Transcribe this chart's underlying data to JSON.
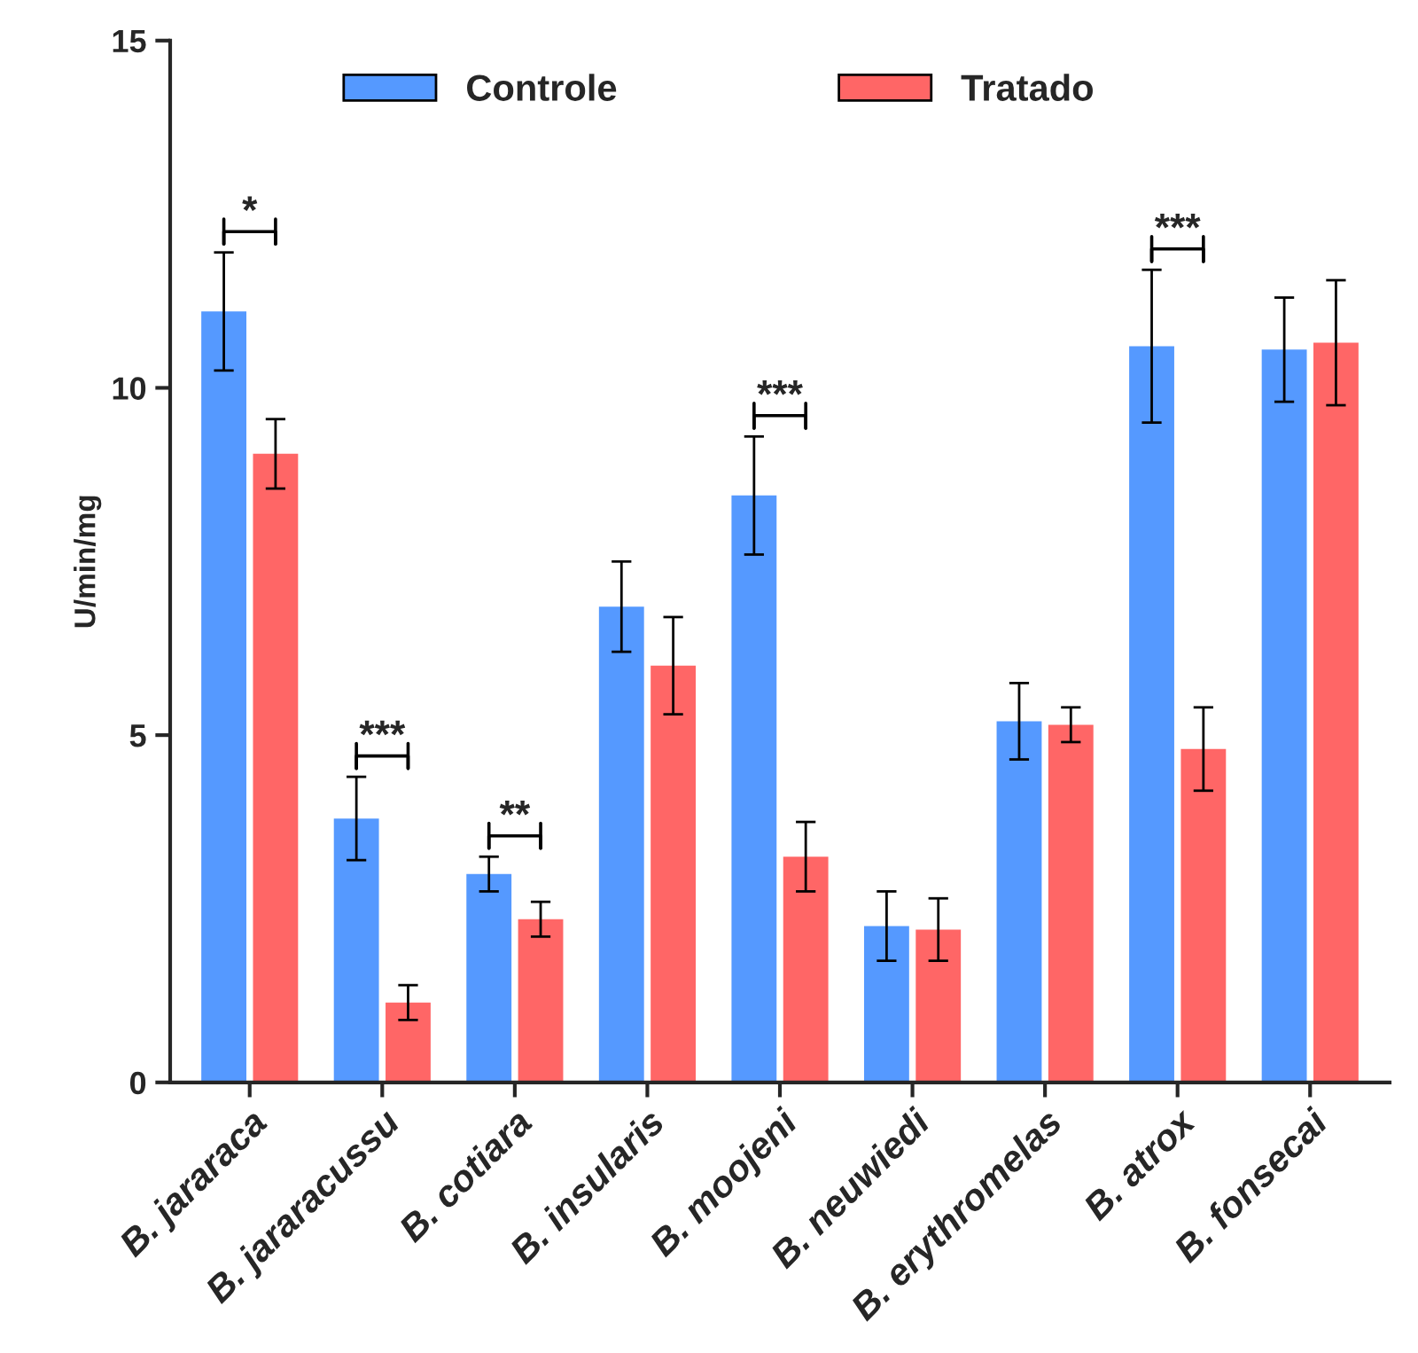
{
  "chart_data": {
    "type": "bar",
    "ylabel": "U/min/mg",
    "categories": [
      "B. jararaca",
      "B. jararacussu",
      "B. cotiara",
      "B. insularis",
      "B. moojeni",
      "B. neuwiedi",
      "B. erythromelas",
      "B. atrox",
      "B. fonsecai"
    ],
    "series": [
      {
        "name": "Controle",
        "color": "#5599ff",
        "values": [
          11.1,
          3.8,
          3.0,
          6.85,
          8.45,
          2.25,
          5.2,
          10.6,
          10.55
        ],
        "errors": [
          0.85,
          0.6,
          0.25,
          0.65,
          0.85,
          0.5,
          0.55,
          1.1,
          0.75
        ],
        "value_labels": [
          "*",
          "***",
          "**",
          null,
          "***",
          null,
          null,
          "***",
          null
        ]
      },
      {
        "name": "Tratado",
        "color": "#ff6666",
        "values": [
          9.05,
          1.15,
          2.35,
          6.0,
          3.25,
          2.2,
          5.15,
          4.8,
          10.65
        ],
        "errors": [
          0.5,
          0.25,
          0.25,
          0.7,
          0.5,
          0.45,
          0.25,
          0.6,
          0.9
        ]
      }
    ],
    "ylim": [
      0,
      15
    ],
    "yticks": [
      0,
      5,
      10,
      15
    ],
    "grid": false,
    "legend": "top"
  }
}
